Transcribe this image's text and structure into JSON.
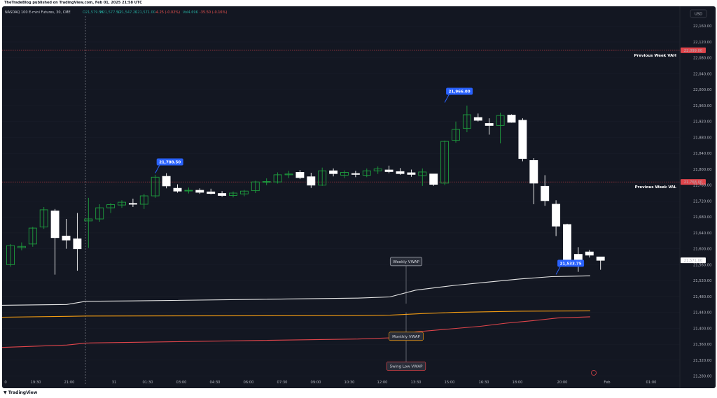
{
  "header": {
    "published": "TheTradeBlog published on TradingView.com, Feb 01, 2025 21:58 UTC"
  },
  "footer": {
    "brand": "TradingView"
  },
  "legend": {
    "symbol": "NASDAQ 100 E-mini Futures, 30, CME",
    "open": "O21,579.50",
    "high": "H21,577.50",
    "low": "L21,547.25",
    "close": "C21,571.00",
    "change": "-4.25 (-0.02%)",
    "volume": "Vol4.69K",
    "vol_change": "-35.50 (-0.16%)"
  },
  "currency": "USD",
  "colors": {
    "background": "#131722",
    "up": "#1e9e3e",
    "down": "#ffffff",
    "level_line": "#e0454b",
    "weekly_vwap": "#e6e6e6",
    "monthly_vwap": "#f39c12",
    "swing_low_vwap": "#e0454b",
    "callout": "#2962ff"
  },
  "chart_data": {
    "type": "candlestick",
    "timeframe": "30",
    "x_ticks": [
      "0",
      "19:30",
      "21:00",
      "31",
      "01:30",
      "03:00",
      "04:30",
      "06:00",
      "07:30",
      "09:00",
      "10:30",
      "12:00",
      "13:30",
      "15:00",
      "16:30",
      "18:00",
      "20:00",
      "Feb",
      "01:00"
    ],
    "y_ticks": [
      "22,160.00",
      "22,120.00",
      "22,080.00",
      "22,040.00",
      "22,000.00",
      "21,960.00",
      "21,920.00",
      "21,880.00",
      "21,840.00",
      "21,800.00",
      "21,760.00",
      "21,720.00",
      "21,680.00",
      "21,640.00",
      "21,600.00",
      "21,560.00",
      "21,520.00",
      "21,480.00",
      "21,440.00",
      "21,400.00",
      "21,360.00",
      "21,320.00",
      "21,280.00"
    ],
    "ylim": [
      21260,
      22185
    ],
    "levels": [
      {
        "label": "Previous Week VAH",
        "value": 22099,
        "price_label": "22,099.00"
      },
      {
        "label": "Previous Week VAL",
        "value": 21768,
        "price_label": "21,768.00"
      }
    ],
    "last_price": {
      "value": 21571,
      "label": "21,571.00"
    },
    "callouts": [
      {
        "label": "21,788.50",
        "value": 21788.5,
        "bar": 13
      },
      {
        "label": "21,966.00",
        "value": 21966,
        "bar": 39
      },
      {
        "label": "21,533.75",
        "value": 21533.75,
        "bar": 49
      }
    ],
    "vwap_labels": [
      "Weekly VWAP",
      "Monthly VWAP",
      "Swing Low VWAP"
    ],
    "candles": [
      {
        "o": 21560,
        "h": 21612,
        "l": 21555,
        "c": 21608
      },
      {
        "o": 21603,
        "h": 21616,
        "l": 21596,
        "c": 21606
      },
      {
        "o": 21612,
        "h": 21655,
        "l": 21605,
        "c": 21652
      },
      {
        "o": 21655,
        "h": 21705,
        "l": 21650,
        "c": 21698
      },
      {
        "o": 21695,
        "h": 21700,
        "l": 21535,
        "c": 21628
      },
      {
        "o": 21632,
        "h": 21675,
        "l": 21600,
        "c": 21622
      },
      {
        "o": 21625,
        "h": 21690,
        "l": 21545,
        "c": 21600
      },
      {
        "o": 21670,
        "h": 21728,
        "l": 21602,
        "c": 21675
      },
      {
        "o": 21675,
        "h": 21712,
        "l": 21668,
        "c": 21703
      },
      {
        "o": 21703,
        "h": 21715,
        "l": 21690,
        "c": 21711
      },
      {
        "o": 21710,
        "h": 21722,
        "l": 21703,
        "c": 21717
      },
      {
        "o": 21714,
        "h": 21726,
        "l": 21705,
        "c": 21712
      },
      {
        "o": 21712,
        "h": 21738,
        "l": 21700,
        "c": 21733
      },
      {
        "o": 21733,
        "h": 21786,
        "l": 21728,
        "c": 21780
      },
      {
        "o": 21782,
        "h": 21790,
        "l": 21752,
        "c": 21758
      },
      {
        "o": 21752,
        "h": 21762,
        "l": 21741,
        "c": 21745
      },
      {
        "o": 21746,
        "h": 21754,
        "l": 21739,
        "c": 21747
      },
      {
        "o": 21747,
        "h": 21752,
        "l": 21738,
        "c": 21742
      },
      {
        "o": 21743,
        "h": 21751,
        "l": 21737,
        "c": 21739
      },
      {
        "o": 21739,
        "h": 21745,
        "l": 21731,
        "c": 21734
      },
      {
        "o": 21734,
        "h": 21744,
        "l": 21729,
        "c": 21740
      },
      {
        "o": 21738,
        "h": 21748,
        "l": 21732,
        "c": 21745
      },
      {
        "o": 21746,
        "h": 21771,
        "l": 21740,
        "c": 21768
      },
      {
        "o": 21768,
        "h": 21777,
        "l": 21760,
        "c": 21769
      },
      {
        "o": 21768,
        "h": 21792,
        "l": 21764,
        "c": 21786
      },
      {
        "o": 21786,
        "h": 21796,
        "l": 21778,
        "c": 21788
      },
      {
        "o": 21792,
        "h": 21798,
        "l": 21775,
        "c": 21779
      },
      {
        "o": 21781,
        "h": 21791,
        "l": 21753,
        "c": 21760
      },
      {
        "o": 21760,
        "h": 21804,
        "l": 21758,
        "c": 21796
      },
      {
        "o": 21796,
        "h": 21802,
        "l": 21782,
        "c": 21789
      },
      {
        "o": 21785,
        "h": 21797,
        "l": 21778,
        "c": 21792
      },
      {
        "o": 21789,
        "h": 21796,
        "l": 21780,
        "c": 21787
      },
      {
        "o": 21785,
        "h": 21802,
        "l": 21780,
        "c": 21796
      },
      {
        "o": 21796,
        "h": 21807,
        "l": 21788,
        "c": 21801
      },
      {
        "o": 21798,
        "h": 21809,
        "l": 21790,
        "c": 21794
      },
      {
        "o": 21794,
        "h": 21803,
        "l": 21786,
        "c": 21789
      },
      {
        "o": 21791,
        "h": 21799,
        "l": 21781,
        "c": 21787
      },
      {
        "o": 21784,
        "h": 21802,
        "l": 21758,
        "c": 21793
      },
      {
        "o": 21788,
        "h": 21780,
        "l": 21758,
        "c": 21762
      },
      {
        "o": 21765,
        "h": 21872,
        "l": 21760,
        "c": 21870
      },
      {
        "o": 21873,
        "h": 21920,
        "l": 21867,
        "c": 21900
      },
      {
        "o": 21903,
        "h": 21960,
        "l": 21893,
        "c": 21937
      },
      {
        "o": 21930,
        "h": 21940,
        "l": 21920,
        "c": 21923
      },
      {
        "o": 21915,
        "h": 21928,
        "l": 21887,
        "c": 21910
      },
      {
        "o": 21910,
        "h": 21942,
        "l": 21865,
        "c": 21935
      },
      {
        "o": 21936,
        "h": 21938,
        "l": 21917,
        "c": 21918
      },
      {
        "o": 21923,
        "h": 21928,
        "l": 21820,
        "c": 21827
      },
      {
        "o": 21822,
        "h": 21828,
        "l": 21712,
        "c": 21765
      },
      {
        "o": 21757,
        "h": 21785,
        "l": 21708,
        "c": 21721
      },
      {
        "o": 21712,
        "h": 21722,
        "l": 21632,
        "c": 21657
      },
      {
        "o": 21661,
        "h": 21663,
        "l": 21560,
        "c": 21568
      },
      {
        "o": 21586,
        "h": 21604,
        "l": 21542,
        "c": 21566
      },
      {
        "o": 21592,
        "h": 21597,
        "l": 21578,
        "c": 21584
      },
      {
        "o": 21579.5,
        "h": 21577.5,
        "l": 21547.25,
        "c": 21571
      }
    ],
    "weekly_vwap": [
      [
        0,
        21458
      ],
      [
        10,
        21460
      ],
      [
        13,
        21468
      ],
      [
        20,
        21469
      ],
      [
        55,
        21476
      ],
      [
        60,
        21479
      ],
      [
        64,
        21496
      ],
      [
        70,
        21508
      ],
      [
        75,
        21516
      ],
      [
        80,
        21524
      ],
      [
        85,
        21530
      ],
      [
        88,
        21531
      ],
      [
        91,
        21532
      ]
    ],
    "monthly_vwap": [
      [
        0,
        21428
      ],
      [
        10,
        21430
      ],
      [
        13,
        21431
      ],
      [
        55,
        21432
      ],
      [
        60,
        21433
      ],
      [
        65,
        21437
      ],
      [
        70,
        21440
      ],
      [
        80,
        21443
      ],
      [
        91,
        21444
      ]
    ],
    "swing_low_vwap": [
      [
        0,
        21352
      ],
      [
        10,
        21358
      ],
      [
        13,
        21363
      ],
      [
        55,
        21373
      ],
      [
        60,
        21376
      ],
      [
        64,
        21391
      ],
      [
        69,
        21398
      ],
      [
        74,
        21405
      ],
      [
        78,
        21413
      ],
      [
        82,
        21419
      ],
      [
        86,
        21426
      ],
      [
        91,
        21429
      ]
    ]
  }
}
